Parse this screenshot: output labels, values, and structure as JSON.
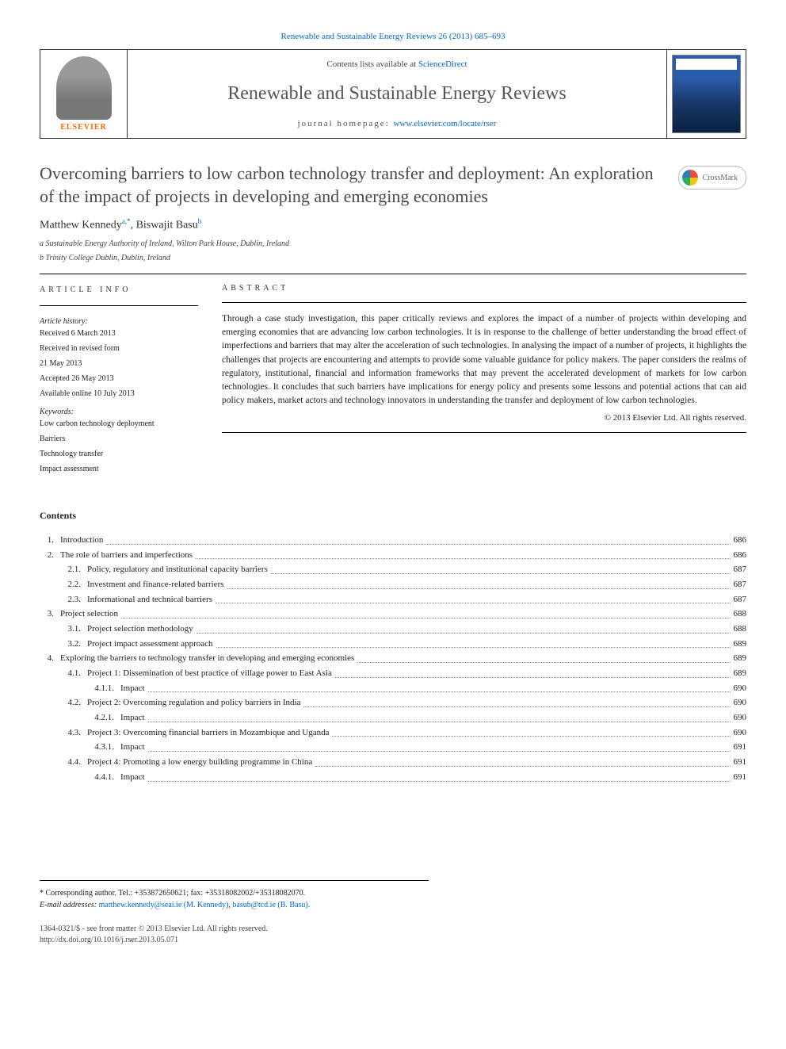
{
  "top_link": "Renewable and Sustainable Energy Reviews 26 (2013) 685–693",
  "header": {
    "contents_label": "Contents lists available at",
    "contents_link": "ScienceDirect",
    "journal_name": "Renewable and Sustainable Energy Reviews",
    "homepage_label": "journal homepage:",
    "homepage_url": "www.elsevier.com/locate/rser",
    "publisher": "ELSEVIER"
  },
  "article": {
    "title": "Overcoming barriers to low carbon technology transfer and deployment: An exploration of the impact of projects in developing and emerging economies",
    "crossmark": "CrossMark",
    "authors_html": "Matthew Kennedy",
    "author1_sup": "a,*",
    "author_sep": ", ",
    "author2": "Biswajit Basu",
    "author2_sup": "b",
    "affiliations": [
      "a Sustainable Energy Authority of Ireland, Wilton Park House, Dublin, Ireland",
      "b Trinity College Dublin, Dublin, Ireland"
    ]
  },
  "info": {
    "heading": "ARTICLE INFO",
    "history_label": "Article history:",
    "history": [
      "Received 6 March 2013",
      "Received in revised form",
      "21 May 2013",
      "Accepted 26 May 2013",
      "Available online 10 July 2013"
    ],
    "keywords_label": "Keywords:",
    "keywords": [
      "Low carbon technology deployment",
      "Barriers",
      "Technology transfer",
      "Impact assessment"
    ]
  },
  "abstract": {
    "heading": "ABSTRACT",
    "text": "Through a case study investigation, this paper critically reviews and explores the impact of a number of projects within developing and emerging economies that are advancing low carbon technologies. It is in response to the challenge of better understanding the broad effect of imperfections and barriers that may alter the acceleration of such technologies. In analysing the impact of a number of projects, it highlights the challenges that projects are encountering and attempts to provide some valuable guidance for policy makers. The paper considers the realms of regulatory, institutional, financial and information frameworks that may prevent the accelerated development of markets for low carbon technologies. It concludes that such barriers have implications for energy policy and presents some lessons and potential actions that can aid policy makers, market actors and technology innovators in understanding the transfer and deployment of low carbon technologies.",
    "copyright": "© 2013 Elsevier Ltd. All rights reserved."
  },
  "contents": {
    "title": "Contents",
    "rows": [
      {
        "level": 0,
        "num": "1.",
        "label": "Introduction",
        "page": "686"
      },
      {
        "level": 0,
        "num": "2.",
        "label": "The role of barriers and imperfections",
        "page": "686"
      },
      {
        "level": 1,
        "num": "2.1.",
        "label": "Policy, regulatory and institutional capacity barriers",
        "page": "687"
      },
      {
        "level": 1,
        "num": "2.2.",
        "label": "Investment and finance-related barriers",
        "page": "687"
      },
      {
        "level": 1,
        "num": "2.3.",
        "label": "Informational and technical barriers",
        "page": "687"
      },
      {
        "level": 0,
        "num": "3.",
        "label": "Project selection",
        "page": "688"
      },
      {
        "level": 1,
        "num": "3.1.",
        "label": "Project selection methodology",
        "page": "688"
      },
      {
        "level": 1,
        "num": "3.2.",
        "label": "Project impact assessment approach",
        "page": "689"
      },
      {
        "level": 0,
        "num": "4.",
        "label": "Exploring the barriers to technology transfer in developing and emerging economies",
        "page": "689"
      },
      {
        "level": 1,
        "num": "4.1.",
        "label": "Project 1: Dissemination of best practice of village power to East Asia",
        "page": "689"
      },
      {
        "level": 2,
        "num": "4.1.1.",
        "label": "Impact",
        "page": "690"
      },
      {
        "level": 1,
        "num": "4.2.",
        "label": "Project 2: Overcoming regulation and policy barriers in India",
        "page": "690"
      },
      {
        "level": 2,
        "num": "4.2.1.",
        "label": "Impact",
        "page": "690"
      },
      {
        "level": 1,
        "num": "4.3.",
        "label": "Project 3: Overcoming financial barriers in Mozambique and Uganda",
        "page": "690"
      },
      {
        "level": 2,
        "num": "4.3.1.",
        "label": "Impact",
        "page": "691"
      },
      {
        "level": 1,
        "num": "4.4.",
        "label": "Project 4: Promoting a low energy building programme in China",
        "page": "691"
      },
      {
        "level": 2,
        "num": "4.4.1.",
        "label": "Impact",
        "page": "691"
      }
    ]
  },
  "footnotes": {
    "corresponding": "* Corresponding author. Tel.: +353872650621; fax: +35318082002/+35318082070.",
    "email_label": "E-mail addresses:",
    "email1": "matthew.kennedy@seai.ie (M. Kennedy)",
    "email_sep": ", ",
    "email2": "basub@tcd.ie (B. Basu).",
    "issn": "1364-0321/$ - see front matter © 2013 Elsevier Ltd. All rights reserved.",
    "doi": "http://dx.doi.org/10.1016/j.rser.2013.05.071"
  }
}
